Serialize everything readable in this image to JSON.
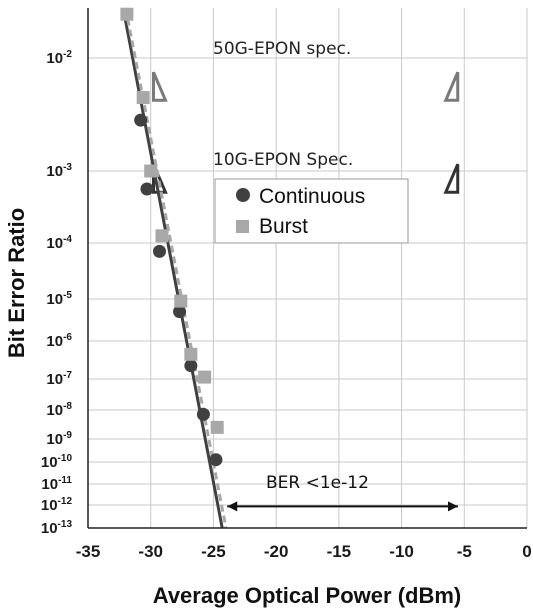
{
  "chart_data": {
    "type": "scatter",
    "xlabel": "Average Optical Power (dBm)",
    "ylabel": "Bit Error Ratio",
    "xlim": [
      -35,
      0
    ],
    "ylog_exponent_range": [
      -13,
      -1.6
    ],
    "y_scale": "log (BER axis)",
    "x_ticks": [
      "-35",
      "-30",
      "-25",
      "-20",
      "-15",
      "-10",
      "-5",
      "0"
    ],
    "y_ticks": [
      {
        "base": "10",
        "exp": "-2",
        "value_exp": -2
      },
      {
        "base": "10",
        "exp": "-3",
        "value_exp": -3
      },
      {
        "base": "10",
        "exp": "-4",
        "value_exp": -4
      },
      {
        "base": "10",
        "exp": "-5",
        "value_exp": -5
      },
      {
        "base": "10",
        "exp": "-6",
        "value_exp": -6
      },
      {
        "base": "10",
        "exp": "-7",
        "value_exp": -7
      },
      {
        "base": "10",
        "exp": "-8",
        "value_exp": -8
      },
      {
        "base": "10",
        "exp": "-9",
        "value_exp": -9
      },
      {
        "base": "10",
        "exp": "-10",
        "value_exp": -10
      },
      {
        "base": "10",
        "exp": "-11",
        "value_exp": -11
      },
      {
        "base": "10",
        "exp": "-12",
        "value_exp": -12
      },
      {
        "base": "10",
        "exp": "-13",
        "value_exp": -13
      }
    ],
    "grid": true,
    "legend_position": "upper-middle",
    "series": [
      {
        "name": "Continuous",
        "marker": "circle",
        "color": "#404040",
        "points": [
          {
            "x": -30.8,
            "log_ber": -2.55
          },
          {
            "x": -30.3,
            "log_ber": -3.25
          },
          {
            "x": -29.3,
            "log_ber": -4.15
          },
          {
            "x": -27.7,
            "log_ber": -5.3
          },
          {
            "x": -26.8,
            "log_ber": -6.65
          },
          {
            "x": -25.8,
            "log_ber": -8.15
          },
          {
            "x": -24.8,
            "log_ber": -9.9
          }
        ],
        "fit": {
          "x": [
            -32.2,
            -24.3
          ],
          "log_ber": [
            -1.6,
            -13.0
          ]
        }
      },
      {
        "name": "Burst",
        "marker": "square",
        "color": "#a8a8a8",
        "points": [
          {
            "x": -31.9,
            "log_ber": -1.65
          },
          {
            "x": -30.6,
            "log_ber": -2.35
          },
          {
            "x": -30.0,
            "log_ber": -3.0
          },
          {
            "x": -29.1,
            "log_ber": -3.9
          },
          {
            "x": -27.6,
            "log_ber": -5.05
          },
          {
            "x": -26.8,
            "log_ber": -6.35
          },
          {
            "x": -25.7,
            "log_ber": -6.95
          },
          {
            "x": -24.7,
            "log_ber": -8.6
          }
        ],
        "fit": {
          "x": [
            -32.0,
            -24.0
          ],
          "log_ber": [
            -1.6,
            -13.0
          ]
        }
      }
    ],
    "annotations": {
      "spec_50g": "50G-EPON spec.",
      "spec_10g": "10G-EPON Spec.",
      "spec_50g_log_ber": -2.0,
      "spec_10g_log_ber": -3.0,
      "spec_50g_x": [
        -32.3,
        -14.0,
        -6.0
      ],
      "spec_10g_x": [
        -32.3,
        -14.0,
        -6.0
      ],
      "ber_arrow_label": "BER <1e-12",
      "ber_arrow_x": [
        -24.3,
        -5.5
      ],
      "ber_arrow_log_ber": -11.35
    },
    "colors": {
      "grid": "#c8c8c8",
      "axis": "#222222",
      "spec_50g": "#7a7a7a",
      "spec_10g": "#333333"
    }
  }
}
